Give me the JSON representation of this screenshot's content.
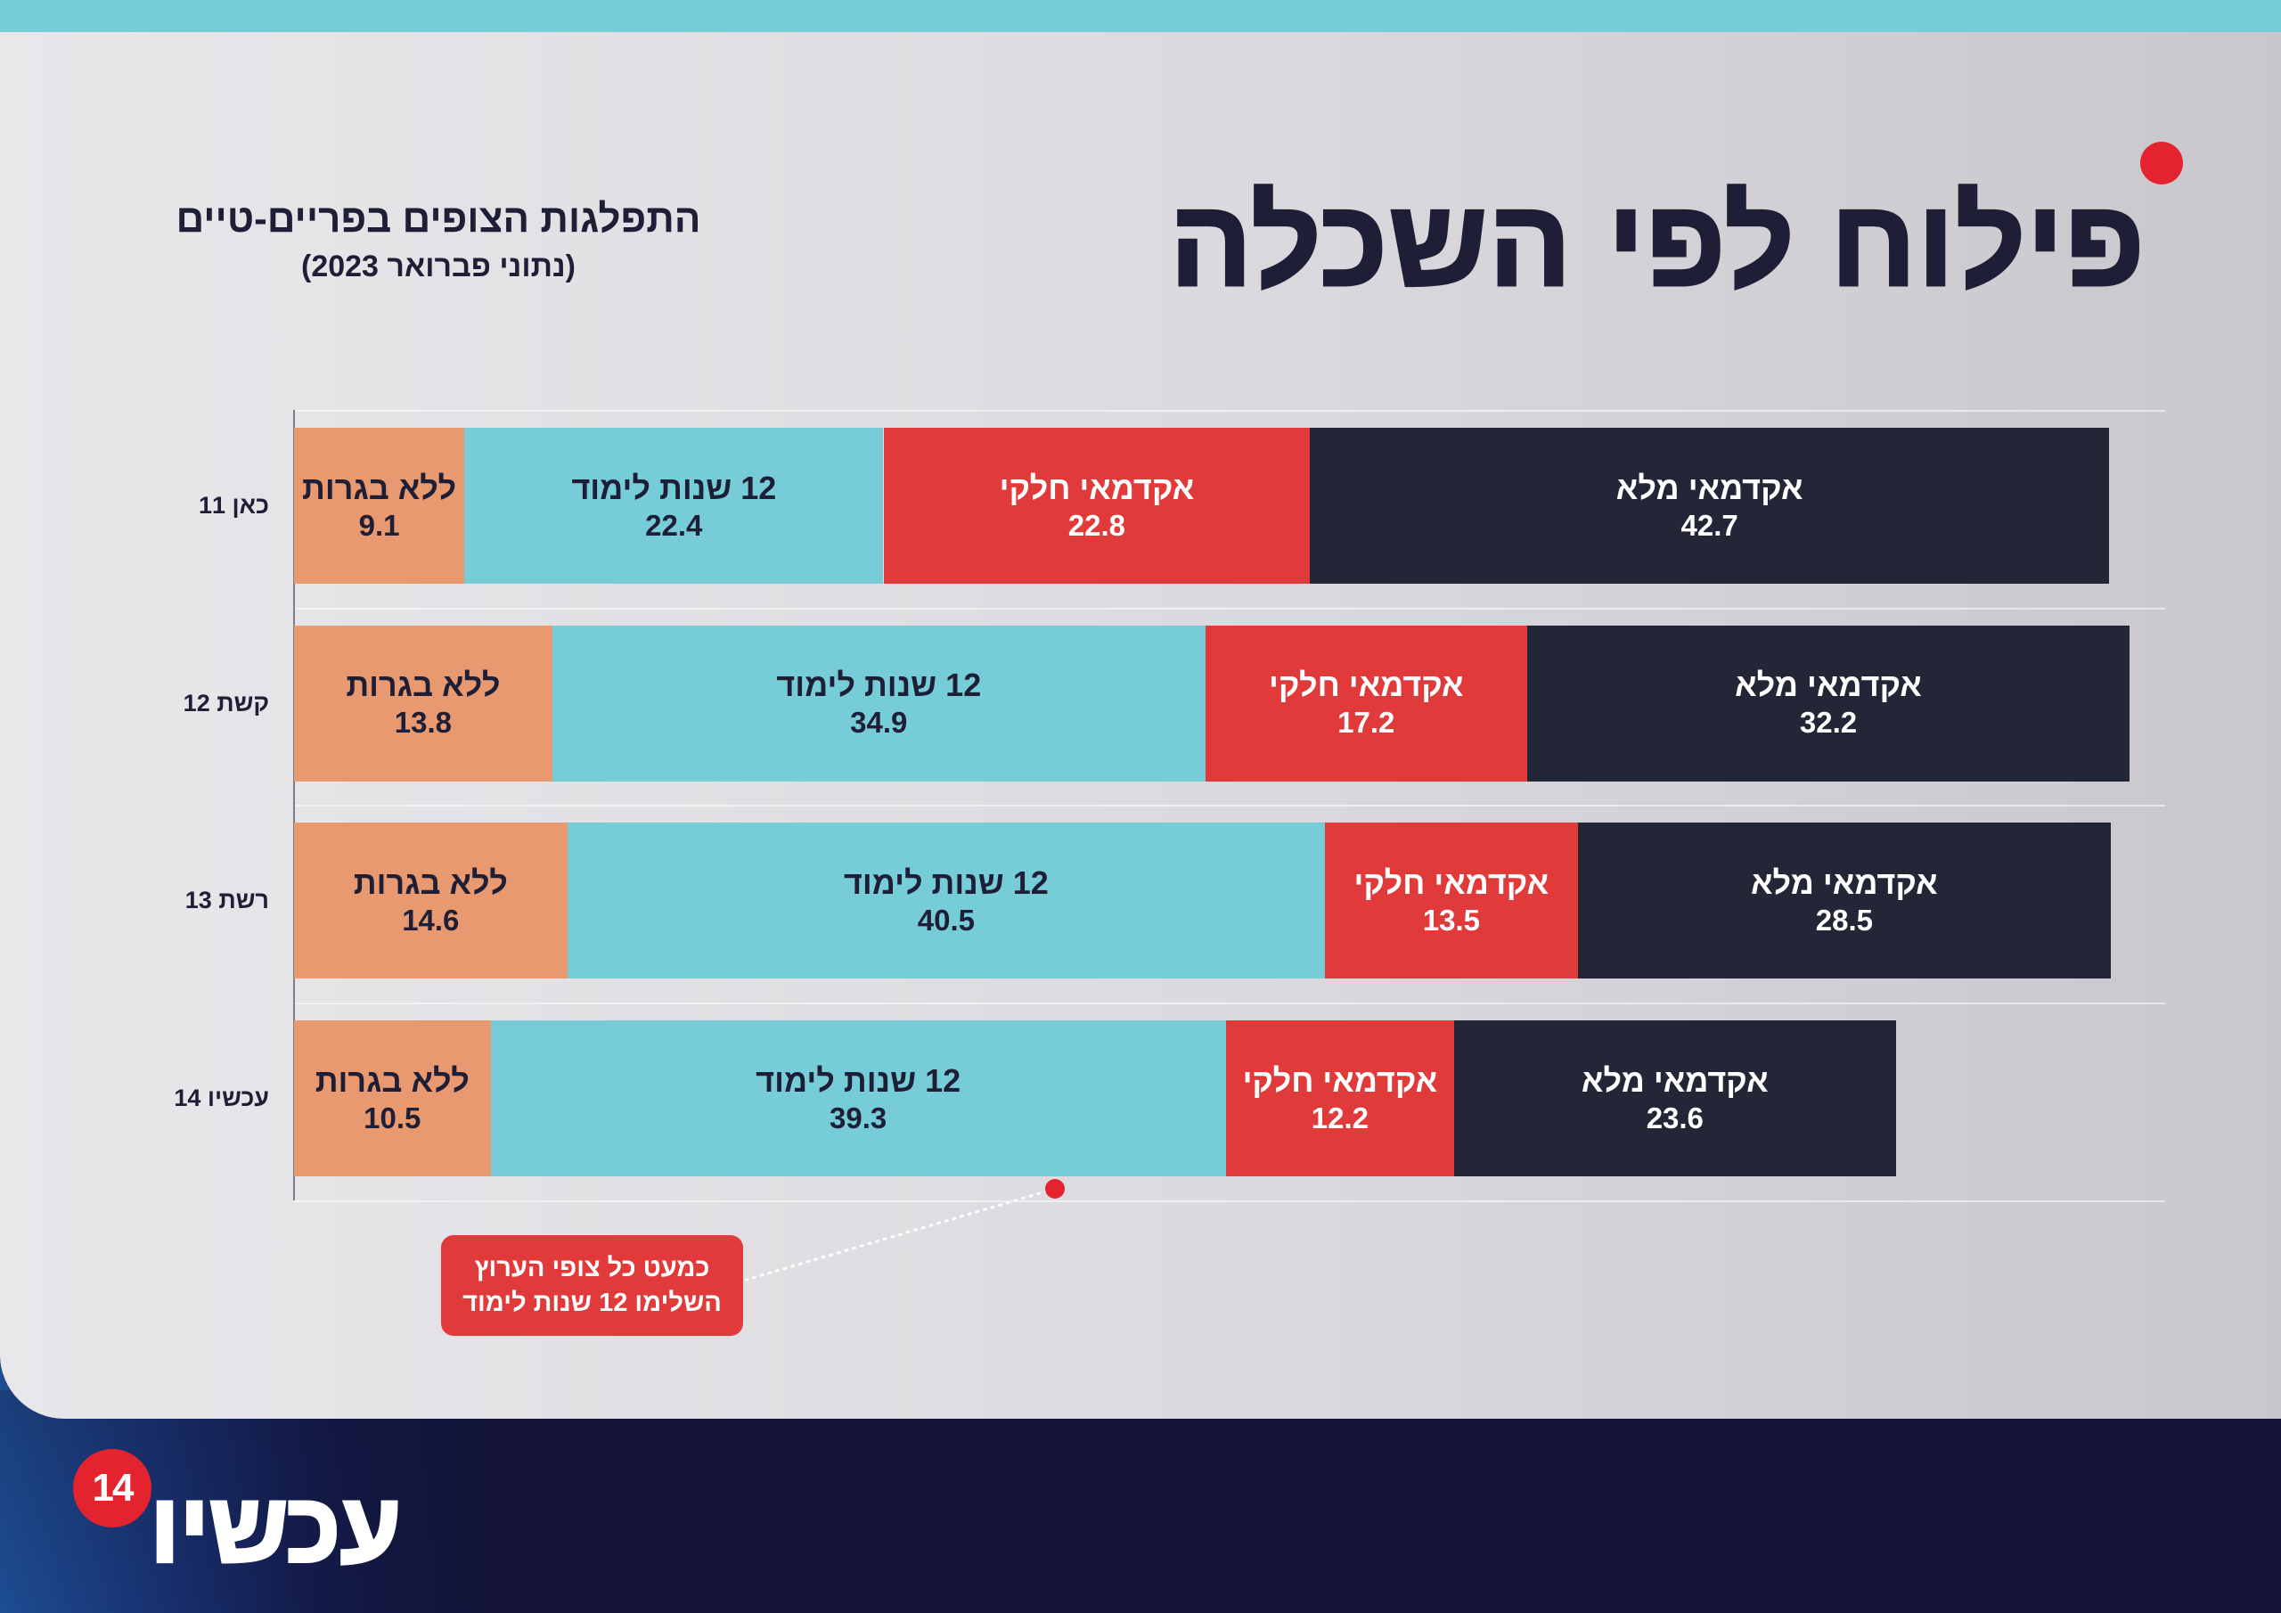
{
  "chart_data": {
    "type": "bar",
    "orientation": "horizontal",
    "stacked": true,
    "title": "פילוח לפי השכלה",
    "subtitle": "התפלגות הצופים בפריים-טיים",
    "note": "(נתוני פברואר 2023)",
    "categories": [
      "כאן 11",
      "קשת 12",
      "רשת 13",
      "עכשיו 14"
    ],
    "series": [
      {
        "name": "ללא בגרות",
        "values": [
          9.1,
          13.8,
          14.6,
          10.5
        ],
        "color": "#E8996F",
        "text_color": "#1E1F36"
      },
      {
        "name": "12 שנות לימוד",
        "values": [
          22.4,
          34.9,
          40.5,
          39.3
        ],
        "color": "#76CDD8",
        "text_color": "#1E1F36"
      },
      {
        "name": "אקדמאי חלקי",
        "values": [
          22.8,
          17.2,
          13.5,
          12.2
        ],
        "color": "#E03A3A",
        "text_color": "#FFFFFF"
      },
      {
        "name": "אקדמאי מלא",
        "values": [
          42.7,
          32.2,
          28.5,
          23.6
        ],
        "color": "#232636",
        "text_color": "#FFFFFF"
      }
    ],
    "xlim": [
      0,
      100
    ],
    "grid": true,
    "annotation": {
      "lines": [
        "כמעט כל צופי הערוץ",
        "השלימו 12 שנות לימוד"
      ]
    }
  },
  "brand": {
    "logo_text": "עכשיו",
    "logo_number": "14"
  },
  "colors": {
    "top_bar": "#74CDD8",
    "title": "#1E1F36",
    "accent_red": "#E3242F",
    "callout": "#E03A3A",
    "footer": "#121335"
  }
}
